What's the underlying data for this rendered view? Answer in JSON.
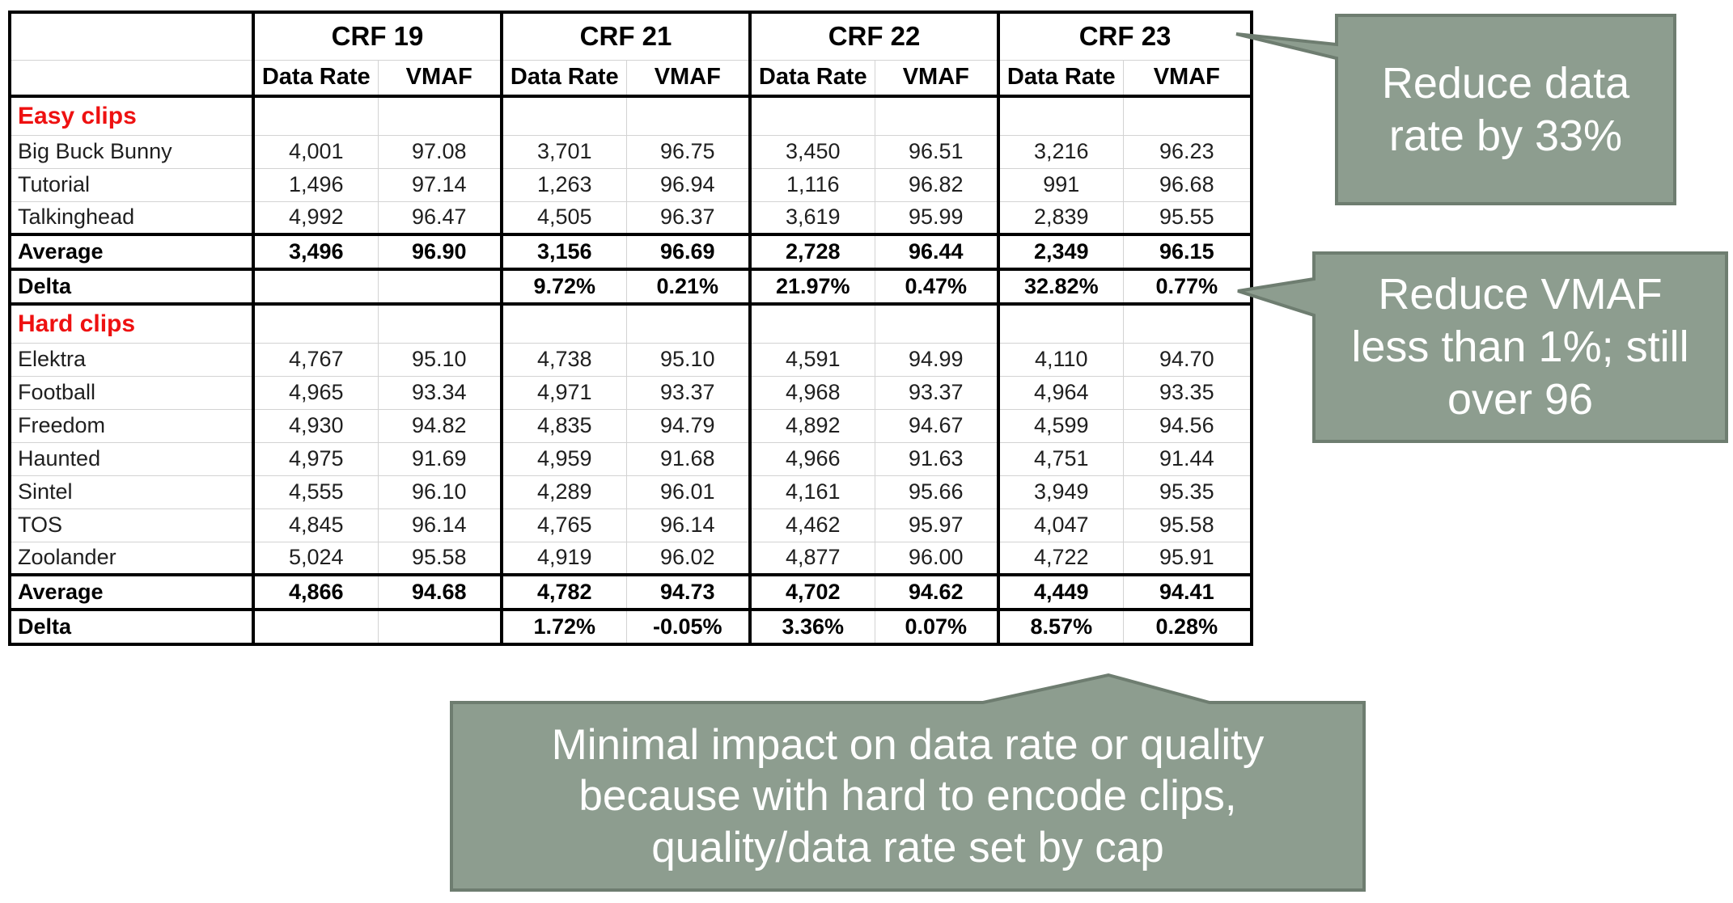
{
  "table": {
    "groups": [
      "CRF 19",
      "CRF 21",
      "CRF 22",
      "CRF 23"
    ],
    "sub_headers": [
      "Data Rate",
      "VMAF"
    ],
    "sections": [
      {
        "title": "Easy clips",
        "rows": [
          {
            "name": "Big Buck Bunny",
            "values": [
              "4,001",
              "97.08",
              "3,701",
              "96.75",
              "3,450",
              "96.51",
              "3,216",
              "96.23"
            ]
          },
          {
            "name": "Tutorial",
            "values": [
              "1,496",
              "97.14",
              "1,263",
              "96.94",
              "1,116",
              "96.82",
              "991",
              "96.68"
            ]
          },
          {
            "name": "Talkinghead",
            "values": [
              "4,992",
              "96.47",
              "4,505",
              "96.37",
              "3,619",
              "95.99",
              "2,839",
              "95.55"
            ]
          }
        ],
        "average": {
          "name": "Average",
          "values": [
            "3,496",
            "96.90",
            "3,156",
            "96.69",
            "2,728",
            "96.44",
            "2,349",
            "96.15"
          ]
        },
        "delta": {
          "name": "Delta",
          "values": [
            "",
            "",
            "9.72%",
            "0.21%",
            "21.97%",
            "0.47%",
            "32.82%",
            "0.77%"
          ]
        }
      },
      {
        "title": "Hard clips",
        "rows": [
          {
            "name": "Elektra",
            "values": [
              "4,767",
              "95.10",
              "4,738",
              "95.10",
              "4,591",
              "94.99",
              "4,110",
              "94.70"
            ]
          },
          {
            "name": "Football",
            "values": [
              "4,965",
              "93.34",
              "4,971",
              "93.37",
              "4,968",
              "93.37",
              "4,964",
              "93.35"
            ]
          },
          {
            "name": "Freedom",
            "values": [
              "4,930",
              "94.82",
              "4,835",
              "94.79",
              "4,892",
              "94.67",
              "4,599",
              "94.56"
            ]
          },
          {
            "name": "Haunted",
            "values": [
              "4,975",
              "91.69",
              "4,959",
              "91.68",
              "4,966",
              "91.63",
              "4,751",
              "91.44"
            ]
          },
          {
            "name": "Sintel",
            "values": [
              "4,555",
              "96.10",
              "4,289",
              "96.01",
              "4,161",
              "95.66",
              "3,949",
              "95.35"
            ]
          },
          {
            "name": "TOS",
            "values": [
              "4,845",
              "96.14",
              "4,765",
              "96.14",
              "4,462",
              "95.97",
              "4,047",
              "95.58"
            ]
          },
          {
            "name": "Zoolander",
            "values": [
              "5,024",
              "95.58",
              "4,919",
              "96.02",
              "4,877",
              "96.00",
              "4,722",
              "95.91"
            ]
          }
        ],
        "average": {
          "name": "Average",
          "values": [
            "4,866",
            "94.68",
            "4,782",
            "94.73",
            "4,702",
            "94.62",
            "4,449",
            "94.41"
          ]
        },
        "delta": {
          "name": "Delta",
          "values": [
            "",
            "",
            "1.72%",
            "-0.05%",
            "3.36%",
            "0.07%",
            "8.57%",
            "0.28%"
          ]
        }
      }
    ]
  },
  "callouts": {
    "data_rate": [
      "Reduce data",
      "rate by 33%"
    ],
    "vmaf": [
      "Reduce VMAF",
      "less than 1%; still",
      "over 96"
    ],
    "hard_clips": [
      "Minimal impact on data rate or quality",
      "because with hard to encode clips,",
      "quality/data rate set by cap"
    ]
  },
  "colors": {
    "callout_fill": "#8d9d8f",
    "callout_border": "#6e7d70",
    "highlight_red": "#ee1111"
  }
}
